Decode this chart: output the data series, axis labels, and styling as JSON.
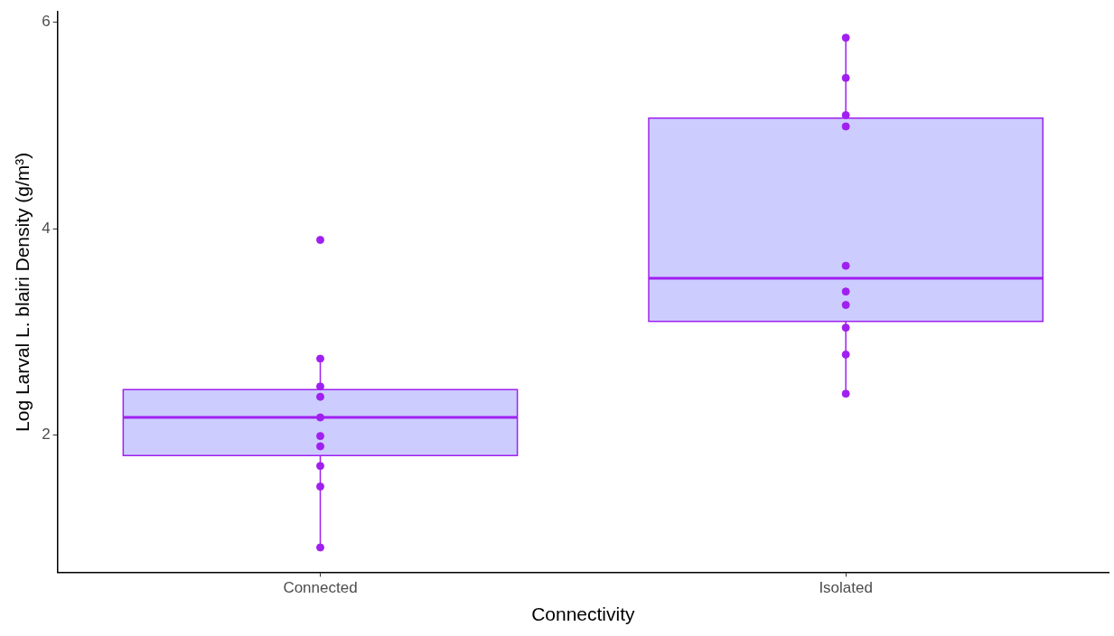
{
  "chart_data": {
    "type": "box",
    "xlabel": "Connectivity",
    "ylabel": "Log Larval L. blairi Density (g/m³)",
    "categories": [
      "Connected",
      "Isolated"
    ],
    "ylim": [
      0.67,
      6.1
    ],
    "yticks": [
      2,
      4,
      6
    ],
    "grid": false,
    "legend": false,
    "series": [
      {
        "color": "#ccccff",
        "boxes": [
          {
            "low": 0.91,
            "q1": 1.8,
            "median": 2.17,
            "q3": 2.44,
            "high": 2.74
          },
          {
            "low": 2.4,
            "q1": 3.1,
            "median": 3.52,
            "q3": 5.07,
            "high": 5.85
          }
        ]
      },
      {
        "type": "scatter",
        "color": "#a020f0",
        "marker": "circle",
        "x": [
          "Connected",
          "Connected",
          "Connected",
          "Connected",
          "Connected",
          "Connected",
          "Connected",
          "Connected",
          "Connected",
          "Connected",
          "Isolated",
          "Isolated",
          "Isolated",
          "Isolated",
          "Isolated",
          "Isolated",
          "Isolated",
          "Isolated",
          "Isolated",
          "Isolated"
        ],
        "values": [
          3.89,
          2.74,
          2.47,
          2.37,
          2.17,
          1.99,
          1.89,
          1.7,
          1.5,
          0.91,
          5.85,
          5.46,
          5.1,
          4.99,
          3.64,
          3.39,
          3.26,
          3.04,
          2.78,
          2.4
        ]
      }
    ]
  }
}
